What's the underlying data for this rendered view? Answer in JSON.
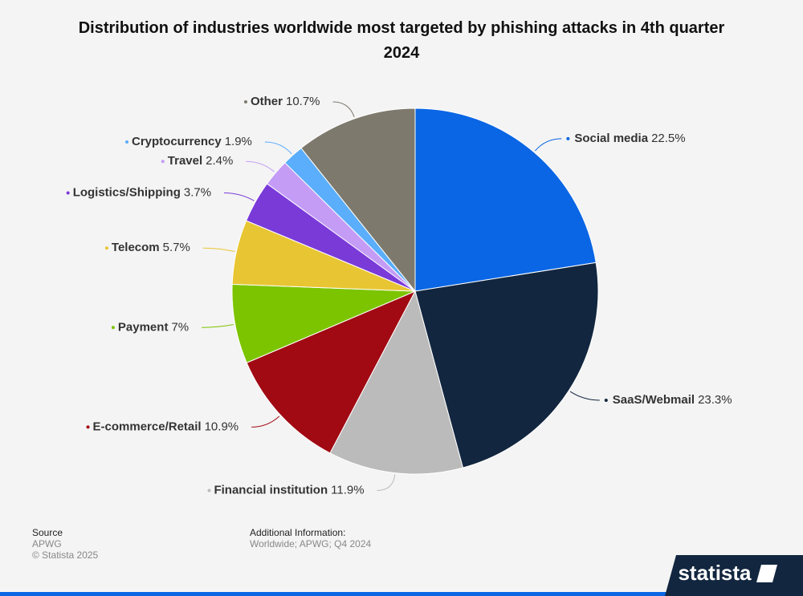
{
  "chart_data": {
    "type": "pie",
    "title": "Distribution of industries worldwide most targeted by phishing attacks in 4th quarter 2024",
    "categories": [
      "Social media",
      "SaaS/Webmail",
      "Financial institution",
      "E-commerce/Retail",
      "Payment",
      "Telecom",
      "Logistics/Shipping",
      "Travel",
      "Cryptocurrency",
      "Other"
    ],
    "values": [
      22.5,
      23.3,
      11.9,
      10.9,
      7,
      5.7,
      3.7,
      2.4,
      1.9,
      10.7
    ],
    "value_labels": [
      "22.5%",
      "23.3%",
      "11.9%",
      "10.9%",
      "7%",
      "5.7%",
      "3.7%",
      "2.4%",
      "1.9%",
      "10.7%"
    ],
    "colors": [
      "#0a66e4",
      "#12263f",
      "#bbbbbb",
      "#a10a13",
      "#7cc400",
      "#e8c532",
      "#7a3ad8",
      "#c49cf6",
      "#5aaefb",
      "#7d7a6d"
    ],
    "footer": {
      "source_label": "Source",
      "source": "APWG",
      "copyright": "© Statista 2025",
      "info_label": "Additional Information:",
      "info": "Worldwide; APWG; Q4 2024",
      "brand": "statista"
    }
  }
}
